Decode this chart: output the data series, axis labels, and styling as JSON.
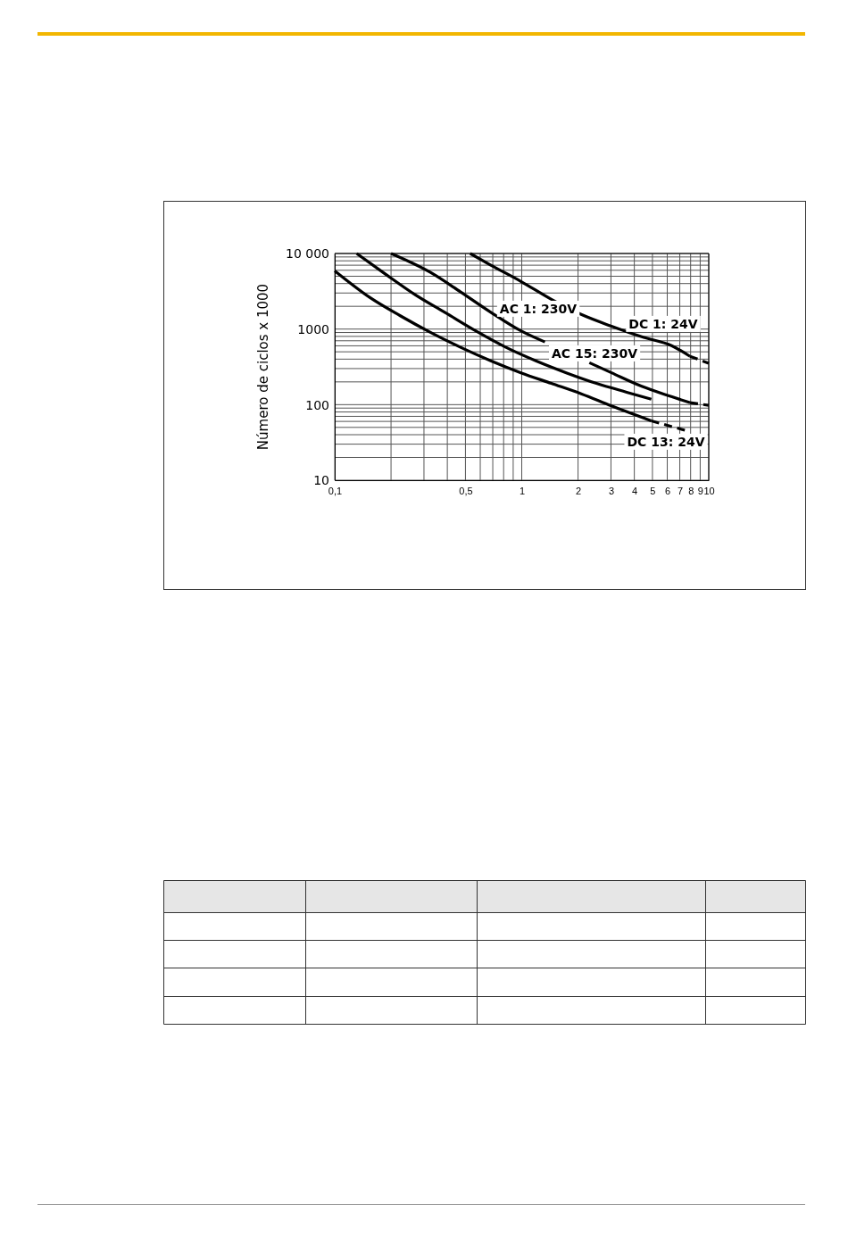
{
  "chart_data": {
    "type": "line",
    "ylabel": "Número de ciclos x 1000",
    "log": "xy",
    "grid": true,
    "marker": "none",
    "xlim": [
      0.1,
      10
    ],
    "ylim": [
      10,
      10000
    ],
    "xticks": [
      {
        "value": 0.1,
        "label": "0,1"
      },
      {
        "value": 0.2,
        "label": null
      },
      {
        "value": 0.3,
        "label": null
      },
      {
        "value": 0.4,
        "label": null
      },
      {
        "value": 0.5,
        "label": "0,5"
      },
      {
        "value": 0.6,
        "label": null
      },
      {
        "value": 0.7,
        "label": null
      },
      {
        "value": 0.8,
        "label": null
      },
      {
        "value": 0.9,
        "label": null
      },
      1,
      2,
      3,
      4,
      5,
      6,
      7,
      8,
      9,
      10
    ],
    "yticks": [
      10,
      {
        "value": 20,
        "label": null
      },
      {
        "value": 30,
        "label": null
      },
      {
        "value": 40,
        "label": null
      },
      {
        "value": 50,
        "label": null
      },
      {
        "value": 60,
        "label": null
      },
      {
        "value": 70,
        "label": null
      },
      {
        "value": 80,
        "label": null
      },
      {
        "value": 90,
        "label": null
      },
      100,
      {
        "value": 200,
        "label": null
      },
      {
        "value": 300,
        "label": null
      },
      {
        "value": 400,
        "label": null
      },
      {
        "value": 500,
        "label": null
      },
      {
        "value": 600,
        "label": null
      },
      {
        "value": 700,
        "label": null
      },
      {
        "value": 800,
        "label": null
      },
      {
        "value": 900,
        "label": null
      },
      1000,
      {
        "value": 2000,
        "label": null
      },
      {
        "value": 3000,
        "label": null
      },
      {
        "value": 4000,
        "label": null
      },
      {
        "value": 5000,
        "label": null
      },
      {
        "value": 6000,
        "label": null
      },
      {
        "value": 7000,
        "label": null
      },
      {
        "value": 8000,
        "label": null
      },
      {
        "value": 9000,
        "label": null
      },
      {
        "value": 10000,
        "label": "10 000"
      }
    ],
    "series": [
      {
        "color": "#000000",
        "line_style": "solid",
        "x": [
          0.53,
          0.68,
          0.99,
          1.44,
          2.08,
          3.02,
          4.38,
          6.36,
          7.94
        ],
        "values": [
          10000,
          7060,
          4270,
          2470,
          1560,
          1090,
          790,
          600,
          435
        ]
      },
      {
        "color": "#000000",
        "line_style": "dashed",
        "x": [
          7.94,
          10
        ],
        "values": [
          435,
          353
        ]
      },
      {
        "color": "#000000",
        "line_style": "solid",
        "x": [
          0.2,
          0.325,
          0.471,
          0.683,
          0.99,
          1.33,
          1.8,
          2.3,
          3.02,
          4.38,
          6.36,
          7.94
        ],
        "values": [
          10000,
          5620,
          3100,
          1670,
          946,
          675,
          null,
          359,
          264,
          175,
          127,
          106
        ]
      },
      {
        "color": "#000000",
        "line_style": "dashed",
        "x": [
          7.94,
          10
        ],
        "values": [
          106,
          98
        ]
      },
      {
        "color": "#000000",
        "line_style": "solid",
        "x": [
          0.131,
          0.186,
          0.27,
          0.391,
          0.567,
          0.823,
          1.19,
          1.73,
          2.51,
          3.64,
          4.93
        ],
        "values": [
          10000,
          5370,
          2830,
          1640,
          946,
          573,
          380,
          264,
          191,
          146,
          118
        ]
      },
      {
        "color": "#000000",
        "line_style": "solid",
        "x": [
          0.1,
          0.155,
          0.224,
          0.325,
          0.471,
          0.683,
          0.99,
          1.44,
          2.08,
          3.02,
          4.93
        ],
        "values": [
          5890,
          2590,
          1500,
          904,
          573,
          380,
          264,
          191,
          139,
          96,
          61
        ]
      },
      {
        "color": "#000000",
        "line_style": "dashed",
        "x": [
          4.93,
          7.51
        ],
        "values": [
          61,
          45.6
        ]
      }
    ],
    "annotations": [
      "AC 1: 230V",
      "DC 1: 24V",
      "AC 15: 230V",
      "DC 13: 24V"
    ]
  }
}
